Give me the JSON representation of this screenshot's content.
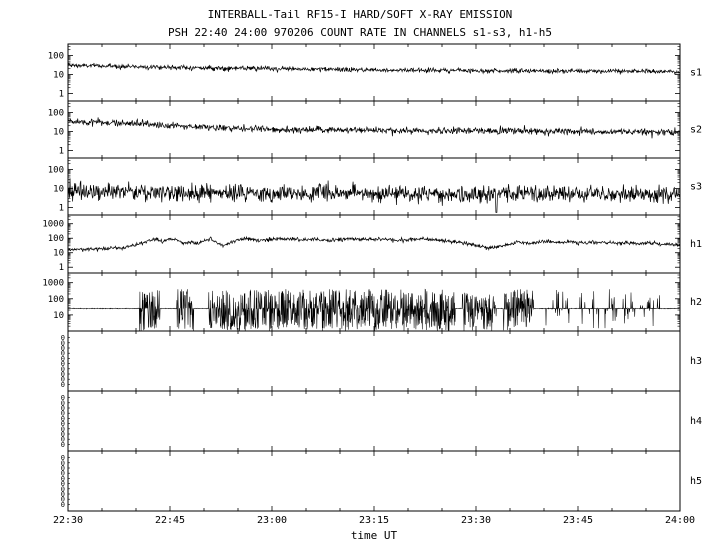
{
  "header": {
    "title": "INTERBALL-Tail RF15-I HARD/SOFT X-RAY EMISSION",
    "subtitle": "PSH 22:40 24:00 970206  COUNT RATE IN CHANNELS s1-s3, h1-h5"
  },
  "axes": {
    "xlabel": "time UT"
  },
  "chart_data": {
    "type": "line",
    "description": "Eight stacked log-scale count-rate time panels, channels s1-s3 and h1-h5, 22:30 to 24:00 UT",
    "x_range_minutes": [
      0,
      90
    ],
    "x_minor_step_minutes": 5,
    "x_ticks": [
      {
        "t": 0,
        "label": "22:30"
      },
      {
        "t": 15,
        "label": "22:45"
      },
      {
        "t": 30,
        "label": "23:00"
      },
      {
        "t": 45,
        "label": "23:15"
      },
      {
        "t": 60,
        "label": "23:30"
      },
      {
        "t": 75,
        "label": "23:45"
      },
      {
        "t": 90,
        "label": "24:00"
      }
    ],
    "panels": [
      {
        "name": "s1",
        "type": "noisy-line",
        "yscale": "log",
        "ylim": [
          0.4,
          400
        ],
        "yticks": [
          1,
          10,
          100
        ],
        "noise_dex": 0.06,
        "envelope": [
          [
            0,
            30
          ],
          [
            10,
            26
          ],
          [
            20,
            22
          ],
          [
            30,
            20
          ],
          [
            40,
            18
          ],
          [
            50,
            17
          ],
          [
            60,
            16
          ],
          [
            70,
            15
          ],
          [
            80,
            15
          ],
          [
            90,
            14
          ]
        ]
      },
      {
        "name": "s2",
        "type": "noisy-line",
        "yscale": "log",
        "ylim": [
          0.4,
          400
        ],
        "yticks": [
          1,
          10,
          100
        ],
        "noise_dex": 0.09,
        "envelope": [
          [
            0,
            32
          ],
          [
            5,
            30
          ],
          [
            10,
            26
          ],
          [
            15,
            21
          ],
          [
            20,
            17
          ],
          [
            25,
            14
          ],
          [
            30,
            13
          ],
          [
            40,
            12
          ],
          [
            50,
            11
          ],
          [
            60,
            11
          ],
          [
            70,
            10
          ],
          [
            80,
            10
          ],
          [
            90,
            9
          ]
        ]
      },
      {
        "name": "s3",
        "type": "noisy-line",
        "yscale": "log",
        "ylim": [
          0.4,
          400
        ],
        "yticks": [
          1,
          10,
          100
        ],
        "noise_dex": 0.22,
        "envelope": [
          [
            0,
            7
          ],
          [
            10,
            6.5
          ],
          [
            20,
            6
          ],
          [
            30,
            5.5
          ],
          [
            40,
            5.5
          ],
          [
            50,
            5
          ],
          [
            60,
            5
          ],
          [
            70,
            5
          ],
          [
            80,
            5
          ],
          [
            90,
            4.5
          ]
        ],
        "spikes": [
          [
            63,
            0.55
          ]
        ]
      },
      {
        "name": "h1",
        "type": "noisy-line",
        "yscale": "log",
        "ylim": [
          0.4,
          4000
        ],
        "yticks": [
          1,
          10,
          100,
          1000
        ],
        "noise_dex": 0.06,
        "envelope": [
          [
            0,
            16
          ],
          [
            4,
            18
          ],
          [
            8,
            22
          ],
          [
            10,
            35
          ],
          [
            12,
            70
          ],
          [
            13,
            95
          ],
          [
            14,
            60
          ],
          [
            15,
            90
          ],
          [
            16,
            75
          ],
          [
            17,
            45
          ],
          [
            18,
            55
          ],
          [
            19,
            40
          ],
          [
            20,
            65
          ],
          [
            21,
            85
          ],
          [
            22,
            45
          ],
          [
            23,
            32
          ],
          [
            24,
            55
          ],
          [
            25,
            85
          ],
          [
            26,
            95
          ],
          [
            28,
            70
          ],
          [
            30,
            85
          ],
          [
            32,
            95
          ],
          [
            34,
            75
          ],
          [
            36,
            85
          ],
          [
            38,
            70
          ],
          [
            40,
            85
          ],
          [
            42,
            95
          ],
          [
            44,
            80
          ],
          [
            46,
            90
          ],
          [
            48,
            75
          ],
          [
            50,
            80
          ],
          [
            52,
            90
          ],
          [
            54,
            75
          ],
          [
            56,
            65
          ],
          [
            58,
            50
          ],
          [
            60,
            30
          ],
          [
            62,
            22
          ],
          [
            64,
            30
          ],
          [
            66,
            50
          ],
          [
            68,
            45
          ],
          [
            70,
            60
          ],
          [
            72,
            50
          ],
          [
            74,
            58
          ],
          [
            76,
            48
          ],
          [
            78,
            52
          ],
          [
            80,
            45
          ],
          [
            82,
            50
          ],
          [
            84,
            42
          ],
          [
            86,
            46
          ],
          [
            88,
            40
          ],
          [
            90,
            36
          ]
        ]
      },
      {
        "name": "h2",
        "type": "burst-line",
        "yscale": "log",
        "ylim": [
          1,
          4000
        ],
        "yticks": [
          10,
          100,
          1000
        ],
        "baseline": 25,
        "burst_range": [
          1,
          400
        ],
        "burst_windows": [
          {
            "t0": 10.5,
            "t1": 13.5,
            "density": 0.85
          },
          {
            "t0": 16.0,
            "t1": 18.5,
            "density": 0.85
          },
          {
            "t0": 20.5,
            "t1": 57.0,
            "density": 0.85
          },
          {
            "t0": 58.0,
            "t1": 63.0,
            "density": 0.8
          },
          {
            "t0": 64.0,
            "t1": 68.5,
            "density": 0.8
          },
          {
            "t0": 70.0,
            "t1": 87.0,
            "density": 0.18
          }
        ]
      },
      {
        "name": "h3",
        "type": "empty",
        "zero_labels": 10
      },
      {
        "name": "h4",
        "type": "empty",
        "zero_labels": 10
      },
      {
        "name": "h5",
        "type": "empty",
        "zero_labels": 10
      }
    ]
  }
}
